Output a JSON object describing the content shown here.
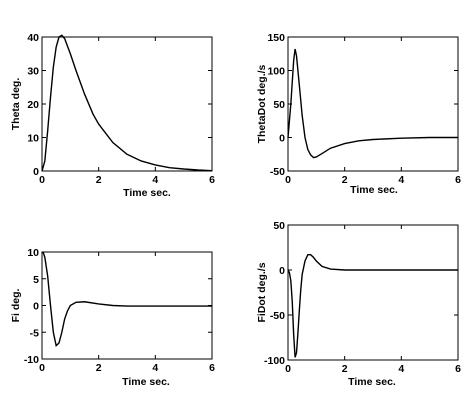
{
  "chart_data": [
    {
      "type": "line",
      "xlabel": "Time  sec.",
      "ylabel": "Theta  deg.",
      "xlim": [
        0,
        6
      ],
      "ylim": [
        0,
        40
      ],
      "xticks": [
        "0",
        "2",
        "4",
        "6"
      ],
      "yticks": [
        "0",
        "10",
        "20",
        "30",
        "40"
      ],
      "grid": false,
      "series": [
        {
          "x": [
            0,
            0.1,
            0.2,
            0.3,
            0.4,
            0.5,
            0.6,
            0.7,
            0.8,
            1.0,
            1.2,
            1.5,
            1.8,
            2.0,
            2.5,
            3.0,
            3.5,
            4.0,
            4.5,
            5.0,
            5.5,
            6.0
          ],
          "values": [
            0,
            3,
            12,
            22,
            31,
            37,
            40,
            40.5,
            39.5,
            35,
            30,
            23,
            17,
            14,
            8.5,
            5,
            3,
            1.8,
            1,
            0.6,
            0.3,
            0.1
          ]
        }
      ]
    },
    {
      "type": "line",
      "xlabel": "Time  sec.",
      "ylabel": "ThetaDot  deg./s",
      "xlim": [
        0,
        6
      ],
      "ylim": [
        -50,
        150
      ],
      "xticks": [
        "0",
        "2",
        "4",
        "6"
      ],
      "yticks": [
        "-50",
        "0",
        "50",
        "100",
        "150"
      ],
      "grid": false,
      "series": [
        {
          "x": [
            0,
            0.1,
            0.2,
            0.25,
            0.3,
            0.4,
            0.5,
            0.6,
            0.7,
            0.8,
            0.9,
            1.0,
            1.2,
            1.5,
            2.0,
            2.5,
            3.0,
            4.0,
            5.0,
            6.0
          ],
          "values": [
            0,
            50,
            115,
            132,
            122,
            78,
            33,
            0,
            -18,
            -26,
            -30,
            -29,
            -24,
            -16,
            -9,
            -5,
            -3,
            -1,
            0,
            0
          ]
        }
      ]
    },
    {
      "type": "line",
      "xlabel": "Time  sec.",
      "ylabel": "Fi  deg.",
      "xlim": [
        0,
        6
      ],
      "ylim": [
        -10,
        10
      ],
      "xticks": [
        "0",
        "2",
        "4",
        "6"
      ],
      "yticks": [
        "-10",
        "-5",
        "0",
        "5",
        "10"
      ],
      "grid": false,
      "series": [
        {
          "x": [
            0,
            0.05,
            0.1,
            0.2,
            0.3,
            0.4,
            0.5,
            0.6,
            0.7,
            0.8,
            0.9,
            1.0,
            1.2,
            1.5,
            2.0,
            2.5,
            3.0,
            4.0,
            5.0,
            6.0
          ],
          "values": [
            10,
            9.8,
            9,
            5.5,
            0,
            -5,
            -7.5,
            -7,
            -5,
            -2.5,
            -1,
            0,
            0.6,
            0.7,
            0.3,
            0,
            -0.1,
            -0.1,
            -0.1,
            -0.1
          ]
        }
      ]
    },
    {
      "type": "line",
      "xlabel": "Time  sec.",
      "ylabel": "FiDot  deg./s",
      "xlim": [
        0,
        6
      ],
      "ylim": [
        -100,
        50
      ],
      "xticks": [
        "0",
        "2",
        "4",
        "6"
      ],
      "yticks": [
        "-100",
        "-50",
        "0",
        "50"
      ],
      "grid": false,
      "series": [
        {
          "x": [
            0,
            0.05,
            0.1,
            0.15,
            0.2,
            0.25,
            0.3,
            0.35,
            0.4,
            0.45,
            0.5,
            0.6,
            0.7,
            0.8,
            0.9,
            1.0,
            1.2,
            1.5,
            2.0,
            3.0,
            4.0,
            5.0,
            6.0
          ],
          "values": [
            0,
            -3,
            -12,
            -35,
            -72,
            -97,
            -92,
            -70,
            -45,
            -22,
            -5,
            10,
            17,
            17,
            14,
            10,
            4,
            1,
            0,
            0,
            0,
            0,
            0
          ]
        }
      ]
    }
  ]
}
